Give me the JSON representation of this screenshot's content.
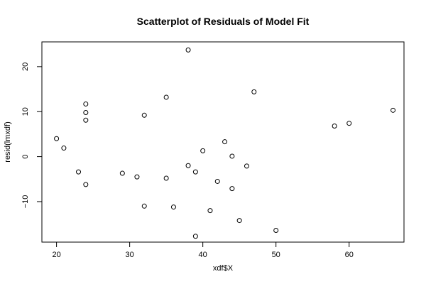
{
  "chart_data": {
    "type": "scatter",
    "title": "Scatterplot of Residuals of Model Fit",
    "xlabel": "xdf$X",
    "ylabel": "resid(lmxdf)",
    "xlim": [
      18,
      67.5
    ],
    "ylim": [
      -19,
      25.5
    ],
    "xticks": [
      20,
      30,
      40,
      50,
      60
    ],
    "yticks": [
      -10,
      0,
      10,
      20
    ],
    "grid": false,
    "marker": "open-circle",
    "points": [
      {
        "x": 20,
        "y": 4.0
      },
      {
        "x": 21,
        "y": 1.9
      },
      {
        "x": 23,
        "y": -3.4
      },
      {
        "x": 24,
        "y": 11.7
      },
      {
        "x": 24,
        "y": 9.8
      },
      {
        "x": 24,
        "y": 8.1
      },
      {
        "x": 24,
        "y": -6.2
      },
      {
        "x": 29,
        "y": -3.7
      },
      {
        "x": 31,
        "y": -4.5
      },
      {
        "x": 32,
        "y": 9.2
      },
      {
        "x": 32,
        "y": -11.0
      },
      {
        "x": 35,
        "y": 13.2
      },
      {
        "x": 35,
        "y": -4.8
      },
      {
        "x": 36,
        "y": -11.2
      },
      {
        "x": 38,
        "y": 23.7
      },
      {
        "x": 38,
        "y": -2.0
      },
      {
        "x": 39,
        "y": -3.4
      },
      {
        "x": 39,
        "y": -17.7
      },
      {
        "x": 40,
        "y": 1.3
      },
      {
        "x": 41,
        "y": -12.0
      },
      {
        "x": 42,
        "y": -5.5
      },
      {
        "x": 43,
        "y": 3.3
      },
      {
        "x": 44,
        "y": 0.1
      },
      {
        "x": 44,
        "y": -7.1
      },
      {
        "x": 45,
        "y": -14.2
      },
      {
        "x": 46,
        "y": -2.1
      },
      {
        "x": 47,
        "y": 14.4
      },
      {
        "x": 50,
        "y": -16.4
      },
      {
        "x": 58,
        "y": 6.8
      },
      {
        "x": 60,
        "y": 7.4
      },
      {
        "x": 66,
        "y": 10.3
      }
    ]
  }
}
